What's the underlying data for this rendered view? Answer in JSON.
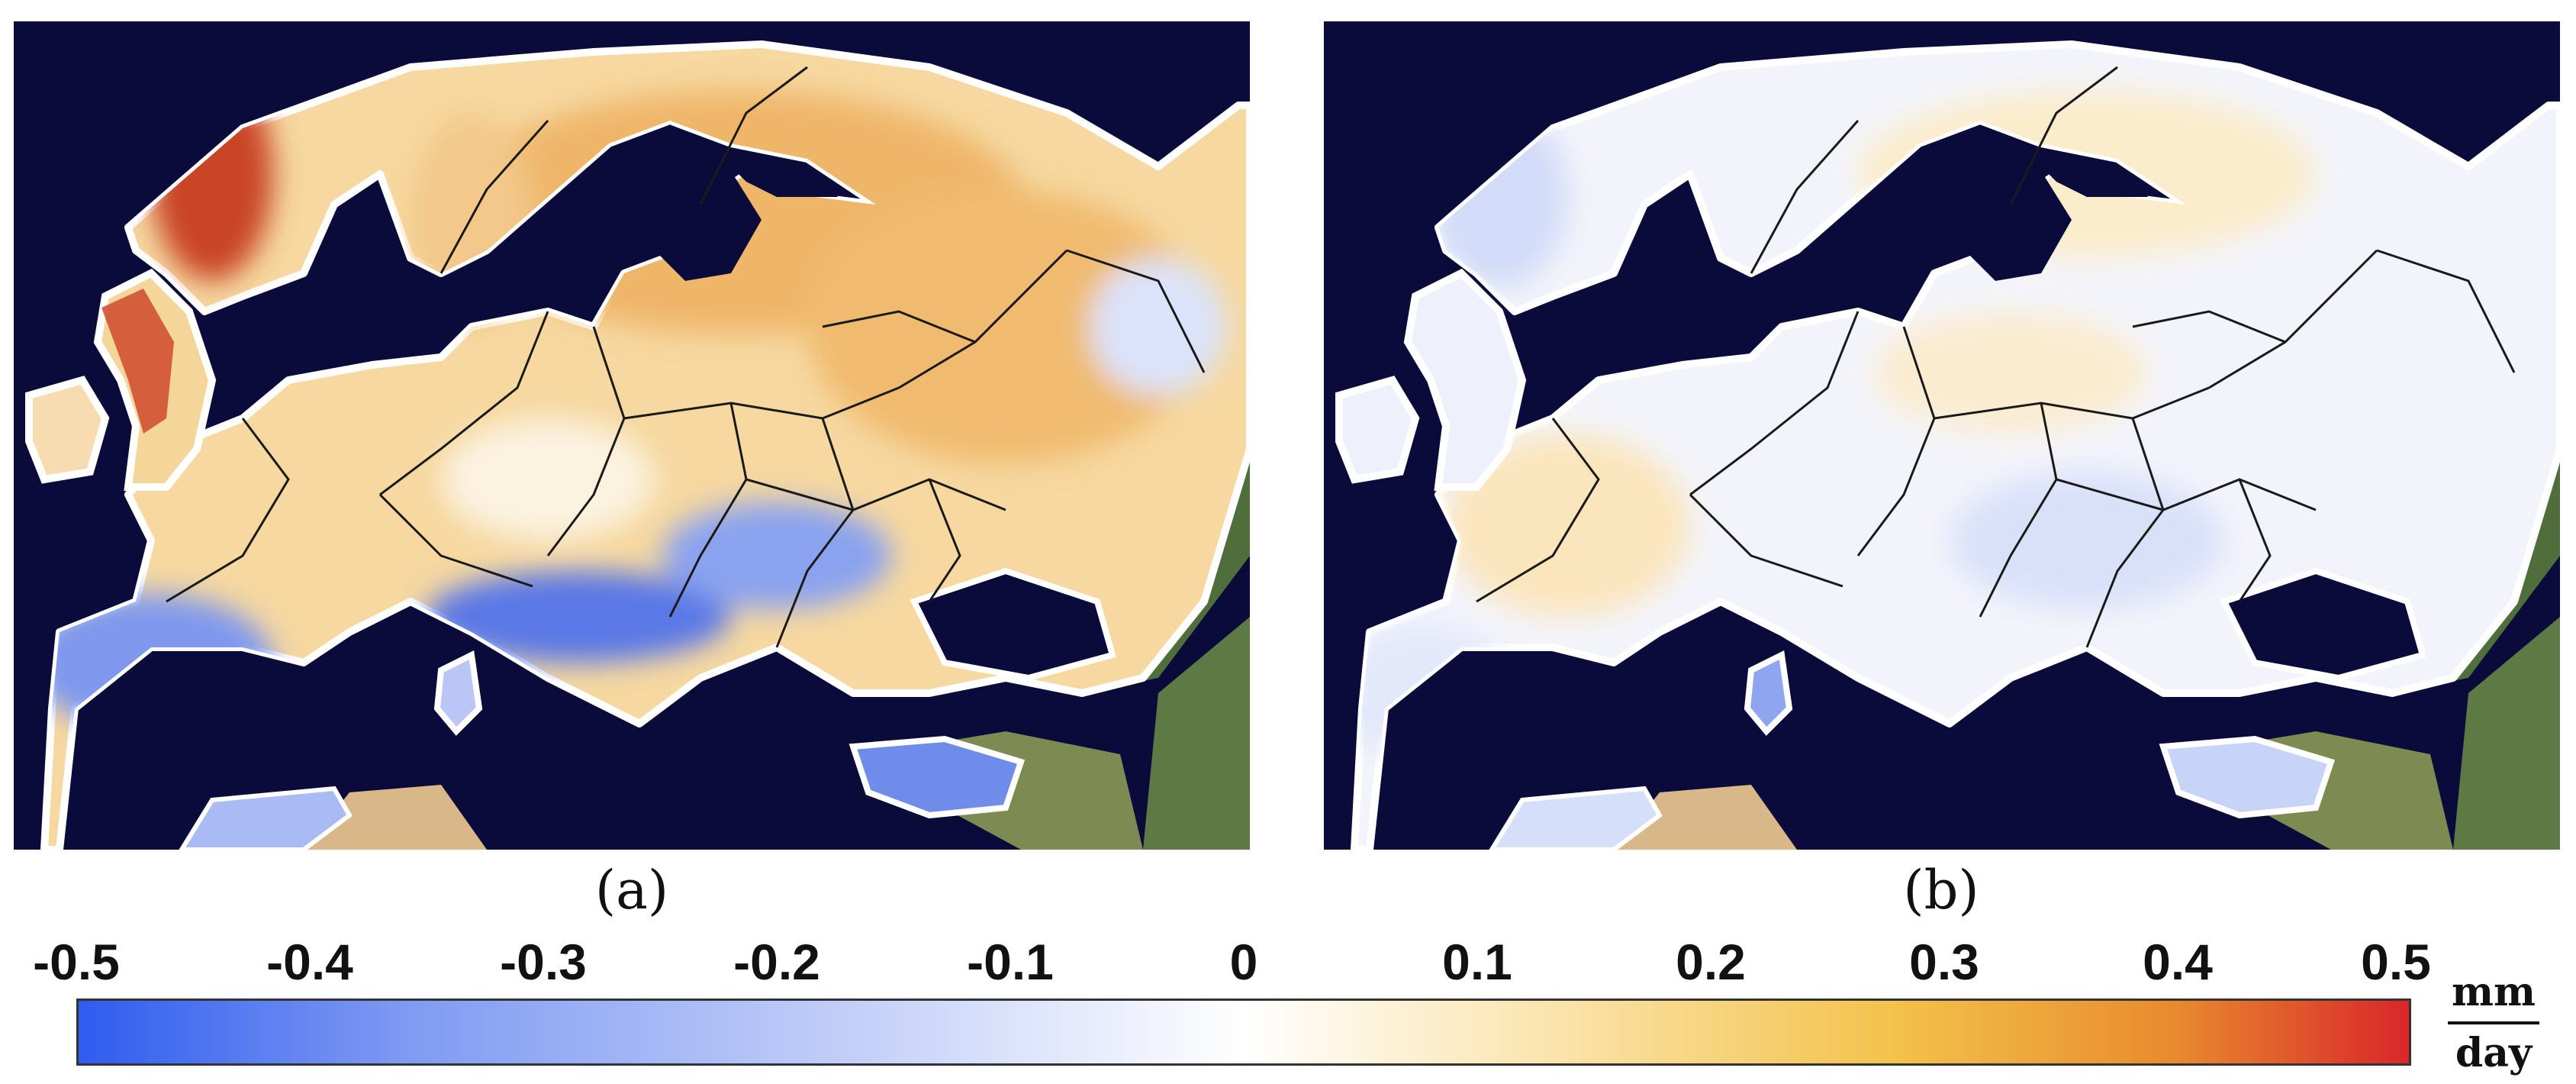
{
  "panels": [
    {
      "id": "a",
      "label": "(a)",
      "field_scheme": "warm"
    },
    {
      "id": "b",
      "label": "(b)",
      "field_scheme": "neutral"
    }
  ],
  "colorbar": {
    "ticks": [
      "-0.5",
      "-0.4",
      "-0.3",
      "-0.2",
      "-0.1",
      "0",
      "0.1",
      "0.2",
      "0.3",
      "0.4",
      "0.5"
    ],
    "min": -0.5,
    "max": 0.5,
    "unit_numerator": "mm",
    "unit_denominator": "day",
    "colors": [
      "#2f5cf0",
      "#7f9af3",
      "#c9d4f9",
      "#ffffff",
      "#fbe6b4",
      "#f3c24a",
      "#e88a2e",
      "#d9262a"
    ]
  },
  "map_colors": {
    "sea": "#0b0b3b",
    "land_background": "#6d7a48",
    "desert": "#d8b888",
    "border": "#1a1a1a",
    "coast_halo": "#ffffff"
  }
}
